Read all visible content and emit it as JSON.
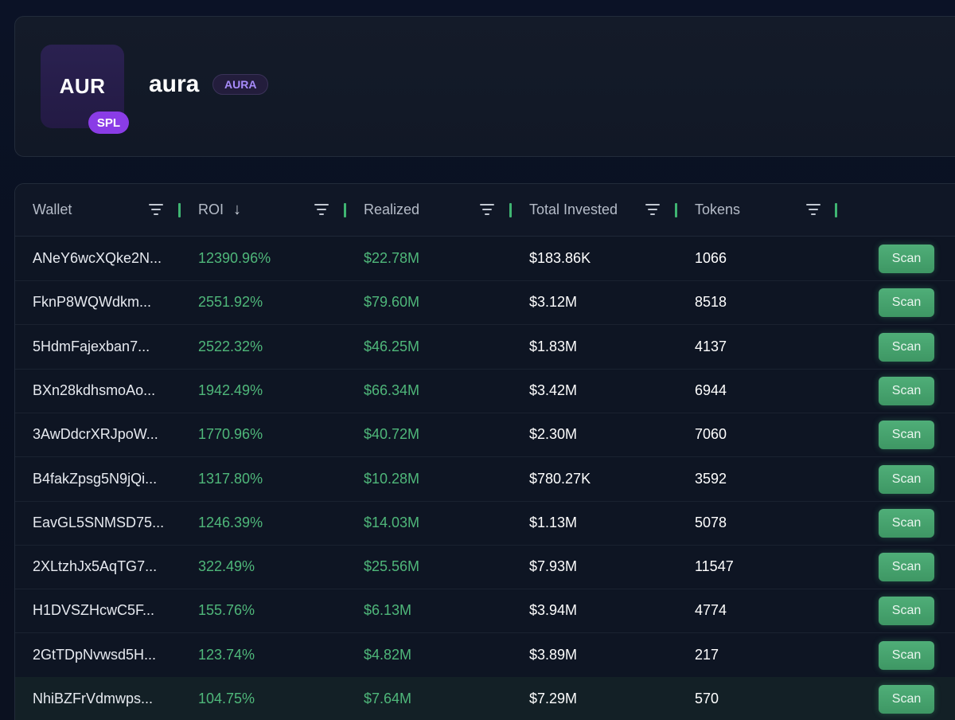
{
  "token": {
    "logo_text": "AUR",
    "chain_badge": "SPL",
    "name": "aura",
    "symbol": "AURA"
  },
  "table": {
    "columns": [
      {
        "label": "Wallet",
        "sorted": false
      },
      {
        "label": "ROI",
        "sorted": true,
        "sort_direction": "desc",
        "sort_icon": "arrow-down-icon"
      },
      {
        "label": "Realized",
        "sorted": false
      },
      {
        "label": "Total Invested",
        "sorted": false
      },
      {
        "label": "Tokens",
        "sorted": false
      }
    ],
    "scan_label": "Scan",
    "rows": [
      {
        "wallet": "ANeY6wcXQke2N...",
        "roi": "12390.96%",
        "realized": "$22.78M",
        "invested": "$183.86K",
        "tokens": "1066"
      },
      {
        "wallet": "FknP8WQWdkm...",
        "roi": "2551.92%",
        "realized": "$79.60M",
        "invested": "$3.12M",
        "tokens": "8518"
      },
      {
        "wallet": "5HdmFajexban7...",
        "roi": "2522.32%",
        "realized": "$46.25M",
        "invested": "$1.83M",
        "tokens": "4137"
      },
      {
        "wallet": "BXn28kdhsmoAo...",
        "roi": "1942.49%",
        "realized": "$66.34M",
        "invested": "$3.42M",
        "tokens": "6944"
      },
      {
        "wallet": "3AwDdcrXRJpoW...",
        "roi": "1770.96%",
        "realized": "$40.72M",
        "invested": "$2.30M",
        "tokens": "7060"
      },
      {
        "wallet": "B4fakZpsg5N9jQi...",
        "roi": "1317.80%",
        "realized": "$10.28M",
        "invested": "$780.27K",
        "tokens": "3592"
      },
      {
        "wallet": "EavGL5SNMSD75...",
        "roi": "1246.39%",
        "realized": "$14.03M",
        "invested": "$1.13M",
        "tokens": "5078"
      },
      {
        "wallet": "2XLtzhJx5AqTG7...",
        "roi": "322.49%",
        "realized": "$25.56M",
        "invested": "$7.93M",
        "tokens": "11547"
      },
      {
        "wallet": "H1DVSZHcwC5F...",
        "roi": "155.76%",
        "realized": "$6.13M",
        "invested": "$3.94M",
        "tokens": "4774"
      },
      {
        "wallet": "2GtTDpNvwsd5H...",
        "roi": "123.74%",
        "realized": "$4.82M",
        "invested": "$3.89M",
        "tokens": "217"
      },
      {
        "wallet": "NhiBZFrVdmwps...",
        "roi": "104.75%",
        "realized": "$7.64M",
        "invested": "$7.29M",
        "tokens": "570"
      }
    ]
  },
  "colors": {
    "positive": "#4fb77a",
    "accent_purple": "#8a3ce6",
    "scan_button": "#4fae78"
  }
}
